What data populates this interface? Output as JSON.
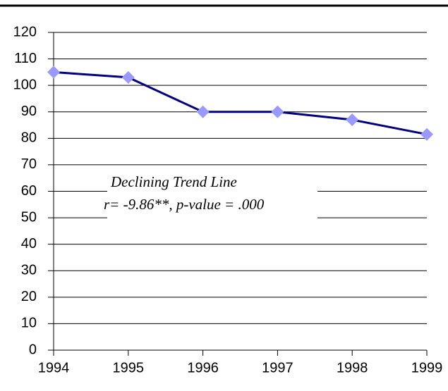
{
  "chart_data": {
    "type": "line",
    "categories": [
      "1994",
      "1995",
      "1996",
      "1997",
      "1998",
      "1999"
    ],
    "series": [
      {
        "color": "#000080",
        "marker_color": "#9999ff",
        "values": [
          105,
          103,
          90,
          90,
          87,
          81.5
        ]
      }
    ],
    "ylim": [
      0,
      120
    ],
    "yticks": [
      0,
      10,
      20,
      30,
      40,
      50,
      60,
      70,
      80,
      90,
      100,
      110,
      120
    ],
    "grid": true,
    "annotation": [
      "Declining Trend Line",
      "r= -9.86**, p-value = .000"
    ]
  }
}
